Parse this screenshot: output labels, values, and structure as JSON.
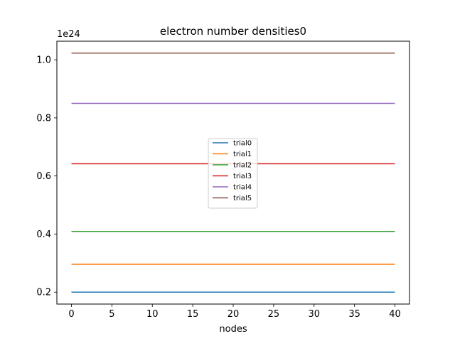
{
  "chart_data": {
    "type": "line",
    "title": "electron number densities0",
    "xlabel": "nodes",
    "ylabel": "",
    "offset_text": "1e24",
    "xlim": [
      -1.8,
      41.8
    ],
    "ylim": [
      0.159,
      1.064
    ],
    "xticks": [
      0,
      5,
      10,
      15,
      20,
      25,
      30,
      35,
      40
    ],
    "xtick_labels": [
      "0",
      "5",
      "10",
      "15",
      "20",
      "25",
      "30",
      "35",
      "40"
    ],
    "yticks": [
      0.2,
      0.4,
      0.6,
      0.8,
      1.0
    ],
    "ytick_labels": [
      "0.2",
      "0.4",
      "0.6",
      "0.8",
      "1.0"
    ],
    "x": [
      0,
      40
    ],
    "grid": false,
    "legend_position": "center",
    "series": [
      {
        "name": "trial0",
        "color": "#1f77b4",
        "values": [
          0.2,
          0.2
        ]
      },
      {
        "name": "trial1",
        "color": "#ff7f0e",
        "values": [
          0.296,
          0.296
        ]
      },
      {
        "name": "trial2",
        "color": "#2ca02c",
        "values": [
          0.409,
          0.409
        ]
      },
      {
        "name": "trial3",
        "color": "#d62728",
        "values": [
          0.642,
          0.642
        ]
      },
      {
        "name": "trial4",
        "color": "#9467bd",
        "values": [
          0.85,
          0.85
        ]
      },
      {
        "name": "trial5",
        "color": "#8c564b",
        "values": [
          1.023,
          1.023
        ]
      }
    ]
  }
}
